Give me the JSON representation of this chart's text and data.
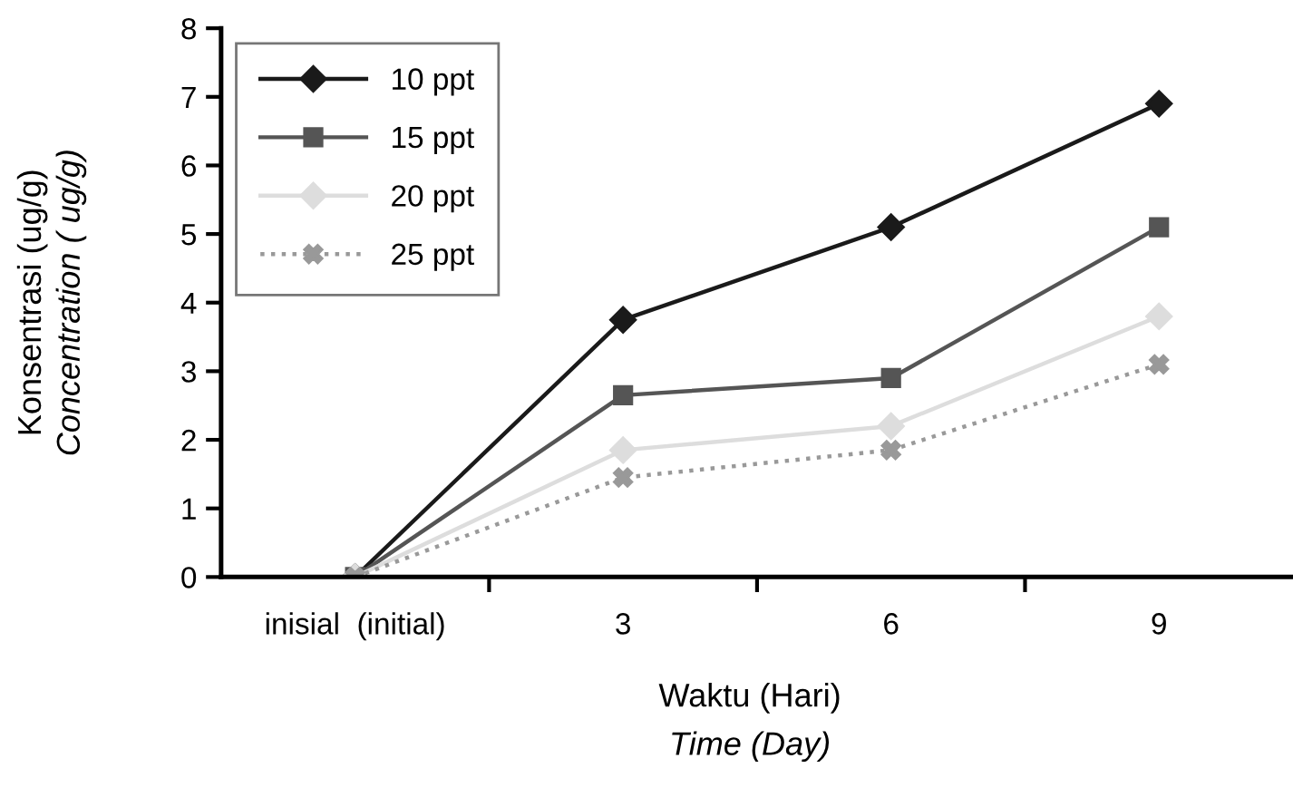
{
  "chart_data": {
    "type": "line",
    "xlabel": "Waktu (Hari)\nTime (Day)",
    "ylabel": "Konsentrasi (ug/g)\nConcentration ( ug/g)",
    "categories": [
      "inisial  (initial)",
      "3",
      "6",
      "9"
    ],
    "series": [
      {
        "name": "10 ppt",
        "color": "#1a1a1a",
        "marker": "diamond",
        "line_style": "solid",
        "values": [
          0,
          3.75,
          5.1,
          6.9
        ]
      },
      {
        "name": "15 ppt",
        "color": "#555555",
        "marker": "square",
        "line_style": "solid",
        "values": [
          0,
          2.65,
          2.9,
          5.1
        ]
      },
      {
        "name": "20 ppt",
        "color": "#dddddd",
        "marker": "diamond",
        "line_style": "solid",
        "values": [
          0,
          1.85,
          2.2,
          3.8
        ]
      },
      {
        "name": "25 ppt",
        "color": "#999999",
        "marker": "cross",
        "line_style": "dotted",
        "values": [
          0,
          1.45,
          1.85,
          3.1
        ]
      }
    ],
    "ylim": [
      0,
      8
    ],
    "yticks": [
      0,
      1,
      2,
      3,
      4,
      5,
      6,
      7,
      8
    ],
    "grid": false,
    "legend": "top left"
  }
}
